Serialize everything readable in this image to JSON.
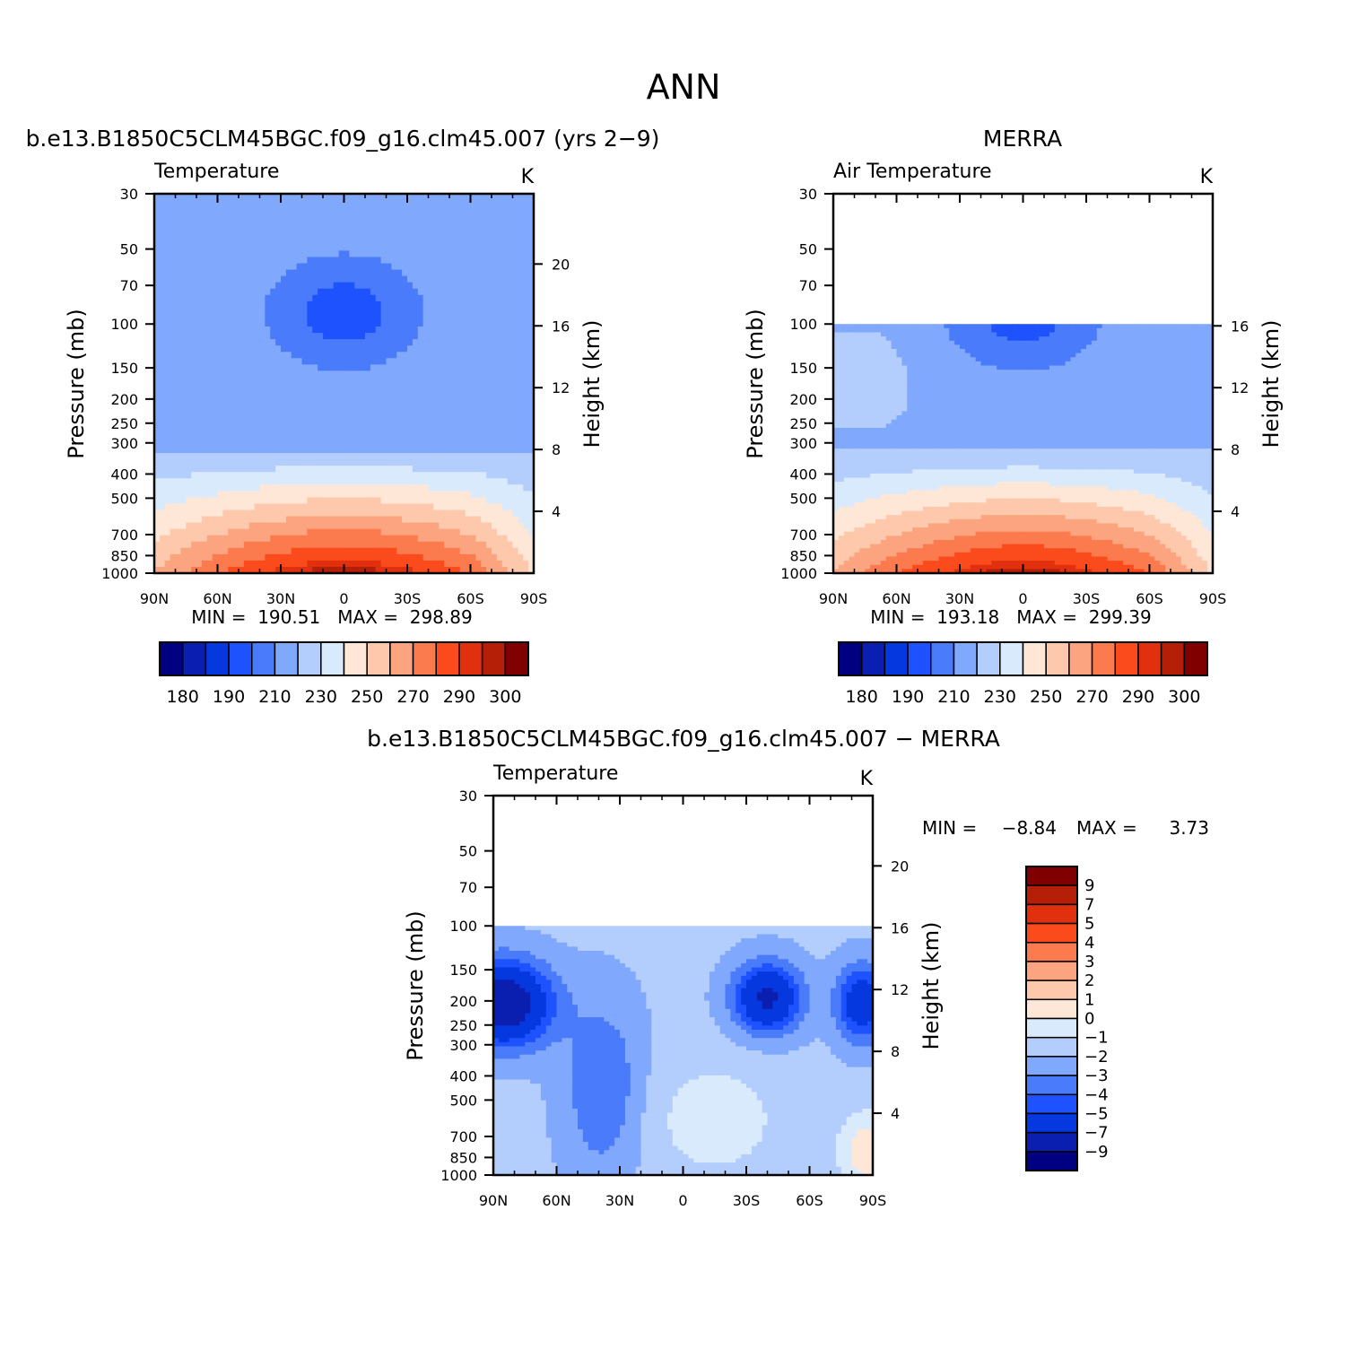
{
  "page_title": "ANN",
  "palette_abs": [
    "#000080",
    "#0a1fb0",
    "#0638e0",
    "#1e52ff",
    "#4a7bfa",
    "#80a8fc",
    "#b3cdfd",
    "#d9eafd",
    "#fee7d7",
    "#fdc8ab",
    "#fca47f",
    "#fb7a4e",
    "#fb4b1c",
    "#e0300e",
    "#b51f07",
    "#800000"
  ],
  "palette_diff": [
    "#000080",
    "#0a1fb0",
    "#0638e0",
    "#1e52ff",
    "#4a7bfa",
    "#80a8fc",
    "#b3cdfd",
    "#d9eafd",
    "#fee7d7",
    "#fdc8ab",
    "#fca47f",
    "#fb7a4e",
    "#fb4b1c",
    "#e0300e",
    "#b51f07",
    "#800000"
  ],
  "chart_data": [
    {
      "id": "model",
      "type": "heatmap",
      "title": "b.e13.B1850C5CLM45BGC.f09_g16.clm45.007 (yrs 2−9)",
      "left_label": "Temperature",
      "units": "K",
      "ylabel": "Pressure (mb)",
      "ylabel_right": "Height (km)",
      "x_ticks": [
        "90N",
        "60N",
        "30N",
        "0",
        "30S",
        "60S",
        "90S"
      ],
      "y_ticks": [
        "30",
        "50",
        "70",
        "100",
        "150",
        "200",
        "250",
        "300",
        "400",
        "500",
        "700",
        "850",
        "1000"
      ],
      "height_ticks": [
        "20",
        "16",
        "12",
        "8",
        "4"
      ],
      "data_top_mb": 30,
      "ylim_mb": [
        1000,
        30
      ],
      "min": "190.51",
      "max": "298.89",
      "stats": "MIN =  190.51   MAX =  298.89",
      "colorbar_labels": [
        "180",
        "190",
        "210",
        "230",
        "250",
        "270",
        "290",
        "300"
      ]
    },
    {
      "id": "obs",
      "type": "heatmap",
      "title": "MERRA",
      "left_label": "Air Temperature",
      "units": "K",
      "ylabel": "Pressure (mb)",
      "ylabel_right": "Height (km)",
      "x_ticks": [
        "90N",
        "60N",
        "30N",
        "0",
        "30S",
        "60S",
        "90S"
      ],
      "y_ticks": [
        "30",
        "50",
        "70",
        "100",
        "150",
        "200",
        "250",
        "300",
        "400",
        "500",
        "700",
        "850",
        "1000"
      ],
      "height_ticks": [
        "16",
        "12",
        "8",
        "4"
      ],
      "data_top_mb": 100,
      "ylim_mb": [
        1000,
        30
      ],
      "min": "193.18",
      "max": "299.39",
      "stats": "MIN =  193.18   MAX =  299.39",
      "colorbar_labels": [
        "180",
        "190",
        "210",
        "230",
        "250",
        "270",
        "290",
        "300"
      ]
    },
    {
      "id": "diff",
      "type": "heatmap",
      "title": "b.e13.B1850C5CLM45BGC.f09_g16.clm45.007 − MERRA",
      "left_label": "Temperature",
      "units": "K",
      "ylabel": "Pressure (mb)",
      "ylabel_right": "Height (km)",
      "x_ticks": [
        "90N",
        "60N",
        "30N",
        "0",
        "30S",
        "60S",
        "90S"
      ],
      "y_ticks": [
        "30",
        "50",
        "70",
        "100",
        "150",
        "200",
        "250",
        "300",
        "400",
        "500",
        "700",
        "850",
        "1000"
      ],
      "height_ticks": [
        "20",
        "16",
        "12",
        "8",
        "4"
      ],
      "data_top_mb": 100,
      "ylim_mb": [
        1000,
        30
      ],
      "min": "−8.84",
      "max": "3.73",
      "min_label": "MIN =",
      "max_label": "MAX =",
      "colorbar_labels": [
        "9",
        "7",
        "5",
        "4",
        "3",
        "2",
        "1",
        "0",
        "−1",
        "−2",
        "−3",
        "−4",
        "−5",
        "−7",
        "−9"
      ]
    }
  ]
}
